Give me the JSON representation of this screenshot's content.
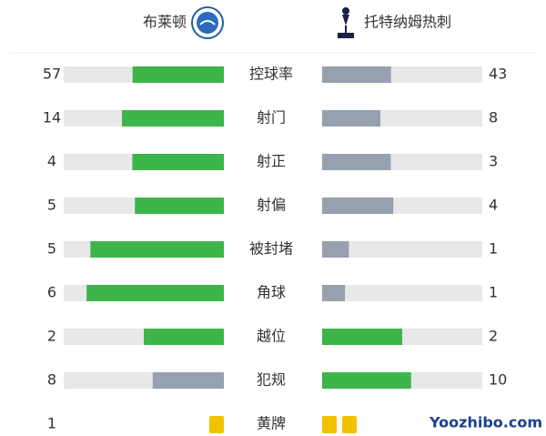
{
  "header": {
    "home_team": "布莱顿",
    "away_team": "托特纳姆热刺"
  },
  "stats": [
    {
      "label": "控球率",
      "home": 57,
      "away": 43
    },
    {
      "label": "射门",
      "home": 14,
      "away": 8
    },
    {
      "label": "射正",
      "home": 4,
      "away": 3
    },
    {
      "label": "射偏",
      "home": 5,
      "away": 4
    },
    {
      "label": "被封堵",
      "home": 5,
      "away": 1
    },
    {
      "label": "角球",
      "home": 6,
      "away": 1
    },
    {
      "label": "越位",
      "home": 2,
      "away": 2
    },
    {
      "label": "犯规",
      "home": 8,
      "away": 10
    },
    {
      "label": "黄牌",
      "home": 1,
      "away": 2
    }
  ],
  "watermark": "Yoozhibo.com"
}
